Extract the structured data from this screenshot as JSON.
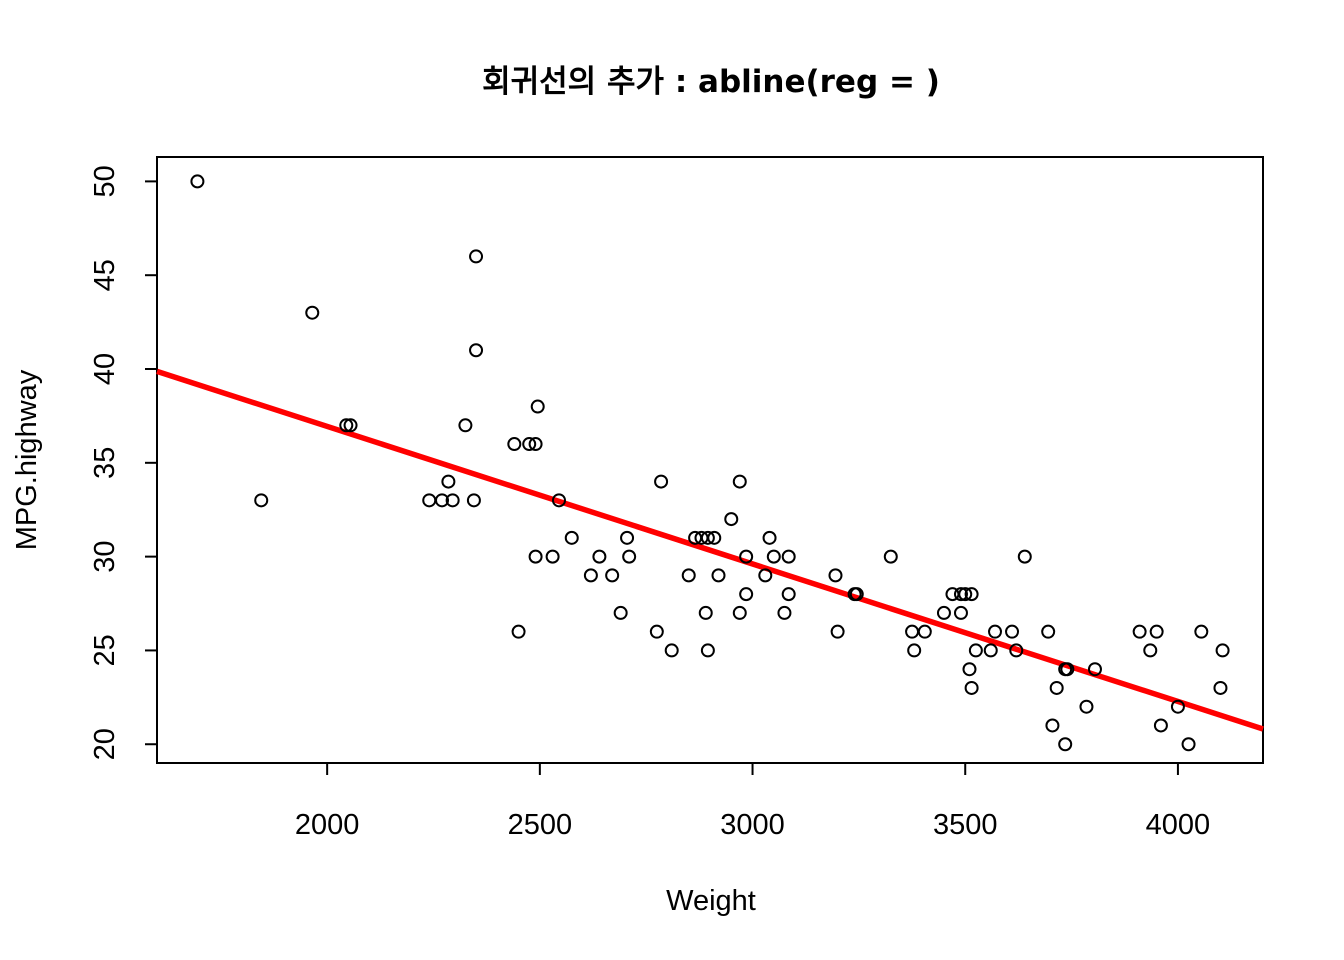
{
  "chart_data": {
    "type": "scatter",
    "title": "회귀선의 추가 : abline(reg = )",
    "xlabel": "Weight",
    "ylabel": "MPG.highway",
    "xlim": [
      1600,
      4200
    ],
    "ylim": [
      19,
      51.3
    ],
    "x_ticks": [
      2000,
      2500,
      3000,
      3500,
      4000
    ],
    "y_ticks": [
      20,
      25,
      30,
      35,
      40,
      45,
      50
    ],
    "grid": false,
    "legend": "none",
    "point_style": "open-circle",
    "regression_line": {
      "intercept": 51.6,
      "slope": -0.00733,
      "color": "#ff0000"
    },
    "points": [
      [
        1695,
        50
      ],
      [
        1845,
        33
      ],
      [
        1965,
        43
      ],
      [
        2045,
        37
      ],
      [
        2055,
        37
      ],
      [
        2240,
        33
      ],
      [
        2270,
        33
      ],
      [
        2285,
        34
      ],
      [
        2295,
        33
      ],
      [
        2325,
        37
      ],
      [
        2345,
        33
      ],
      [
        2350,
        46
      ],
      [
        2350,
        41
      ],
      [
        2440,
        36
      ],
      [
        2450,
        26
      ],
      [
        2475,
        36
      ],
      [
        2490,
        30
      ],
      [
        2490,
        36
      ],
      [
        2495,
        38
      ],
      [
        2530,
        30
      ],
      [
        2545,
        33
      ],
      [
        2575,
        31
      ],
      [
        2620,
        29
      ],
      [
        2640,
        30
      ],
      [
        2670,
        29
      ],
      [
        2690,
        27
      ],
      [
        2705,
        31
      ],
      [
        2710,
        30
      ],
      [
        2775,
        26
      ],
      [
        2785,
        34
      ],
      [
        2810,
        25
      ],
      [
        2850,
        29
      ],
      [
        2865,
        31
      ],
      [
        2880,
        31
      ],
      [
        2890,
        27
      ],
      [
        2895,
        31
      ],
      [
        2895,
        25
      ],
      [
        2910,
        31
      ],
      [
        2920,
        29
      ],
      [
        2950,
        32
      ],
      [
        2970,
        34
      ],
      [
        2970,
        27
      ],
      [
        2985,
        28
      ],
      [
        2985,
        30
      ],
      [
        3030,
        29
      ],
      [
        3040,
        31
      ],
      [
        3050,
        30
      ],
      [
        3075,
        27
      ],
      [
        3085,
        28
      ],
      [
        3085,
        30
      ],
      [
        3195,
        29
      ],
      [
        3200,
        26
      ],
      [
        3240,
        28
      ],
      [
        3245,
        28
      ],
      [
        3325,
        30
      ],
      [
        3375,
        26
      ],
      [
        3380,
        25
      ],
      [
        3405,
        26
      ],
      [
        3450,
        27
      ],
      [
        3470,
        28
      ],
      [
        3490,
        27
      ],
      [
        3490,
        28
      ],
      [
        3500,
        28
      ],
      [
        3510,
        24
      ],
      [
        3515,
        28
      ],
      [
        3515,
        23
      ],
      [
        3525,
        25
      ],
      [
        3560,
        25
      ],
      [
        3570,
        26
      ],
      [
        3610,
        26
      ],
      [
        3620,
        25
      ],
      [
        3640,
        30
      ],
      [
        3695,
        26
      ],
      [
        3705,
        21
      ],
      [
        3715,
        23
      ],
      [
        3735,
        24
      ],
      [
        3735,
        20
      ],
      [
        3740,
        24
      ],
      [
        3785,
        22
      ],
      [
        3805,
        24
      ],
      [
        3910,
        26
      ],
      [
        3935,
        25
      ],
      [
        3950,
        26
      ],
      [
        3960,
        21
      ],
      [
        4000,
        22
      ],
      [
        4025,
        20
      ],
      [
        4055,
        26
      ],
      [
        4100,
        23
      ],
      [
        4105,
        25
      ]
    ]
  }
}
